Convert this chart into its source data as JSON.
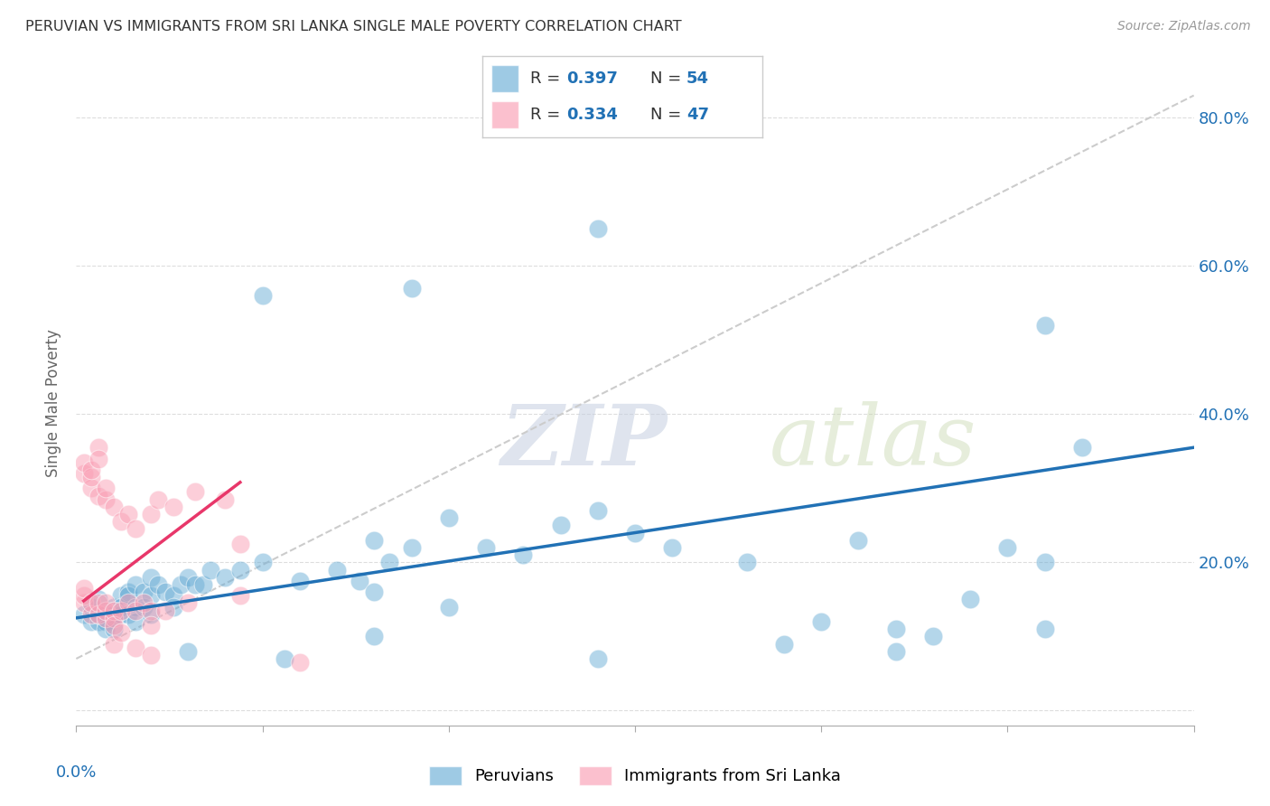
{
  "title": "PERUVIAN VS IMMIGRANTS FROM SRI LANKA SINGLE MALE POVERTY CORRELATION CHART",
  "source": "Source: ZipAtlas.com",
  "ylabel": "Single Male Poverty",
  "xlim": [
    0.0,
    0.15
  ],
  "ylim": [
    -0.02,
    0.85
  ],
  "yticks": [
    0.0,
    0.2,
    0.4,
    0.6,
    0.8
  ],
  "ytick_labels": [
    "",
    "20.0%",
    "40.0%",
    "60.0%",
    "80.0%"
  ],
  "xticks": [
    0.0,
    0.025,
    0.05,
    0.075,
    0.1,
    0.125,
    0.15
  ],
  "background_color": "#ffffff",
  "grid_color": "#dddddd",
  "watermark_zip": "ZIP",
  "watermark_atlas": "atlas",
  "blue_color": "#6baed6",
  "pink_color": "#fa9fb5",
  "blue_line_color": "#2171b5",
  "pink_line_color": "#e8376a",
  "dashed_line_color": "#cccccc",
  "title_color": "#333333",
  "source_color": "#999999",
  "blue_scatter": [
    [
      0.001,
      0.13
    ],
    [
      0.002,
      0.14
    ],
    [
      0.002,
      0.12
    ],
    [
      0.003,
      0.15
    ],
    [
      0.003,
      0.13
    ],
    [
      0.003,
      0.12
    ],
    [
      0.004,
      0.13
    ],
    [
      0.004,
      0.12
    ],
    [
      0.004,
      0.11
    ],
    [
      0.005,
      0.14
    ],
    [
      0.005,
      0.13
    ],
    [
      0.005,
      0.11
    ],
    [
      0.006,
      0.155
    ],
    [
      0.006,
      0.13
    ],
    [
      0.006,
      0.14
    ],
    [
      0.007,
      0.16
    ],
    [
      0.007,
      0.155
    ],
    [
      0.007,
      0.13
    ],
    [
      0.008,
      0.17
    ],
    [
      0.008,
      0.14
    ],
    [
      0.008,
      0.12
    ],
    [
      0.009,
      0.16
    ],
    [
      0.009,
      0.14
    ],
    [
      0.01,
      0.18
    ],
    [
      0.01,
      0.155
    ],
    [
      0.01,
      0.13
    ],
    [
      0.011,
      0.17
    ],
    [
      0.012,
      0.16
    ],
    [
      0.013,
      0.155
    ],
    [
      0.013,
      0.14
    ],
    [
      0.014,
      0.17
    ],
    [
      0.015,
      0.18
    ],
    [
      0.016,
      0.17
    ],
    [
      0.017,
      0.17
    ],
    [
      0.018,
      0.19
    ],
    [
      0.02,
      0.18
    ],
    [
      0.022,
      0.19
    ],
    [
      0.025,
      0.2
    ],
    [
      0.03,
      0.175
    ],
    [
      0.035,
      0.19
    ],
    [
      0.038,
      0.175
    ],
    [
      0.04,
      0.16
    ],
    [
      0.04,
      0.23
    ],
    [
      0.042,
      0.2
    ],
    [
      0.045,
      0.22
    ],
    [
      0.05,
      0.26
    ],
    [
      0.055,
      0.22
    ],
    [
      0.06,
      0.21
    ],
    [
      0.065,
      0.25
    ],
    [
      0.07,
      0.27
    ],
    [
      0.075,
      0.24
    ],
    [
      0.08,
      0.22
    ],
    [
      0.09,
      0.2
    ],
    [
      0.1,
      0.12
    ],
    [
      0.105,
      0.23
    ],
    [
      0.11,
      0.11
    ],
    [
      0.115,
      0.1
    ],
    [
      0.12,
      0.15
    ],
    [
      0.13,
      0.11
    ],
    [
      0.025,
      0.56
    ],
    [
      0.045,
      0.57
    ],
    [
      0.07,
      0.65
    ],
    [
      0.13,
      0.52
    ],
    [
      0.04,
      0.1
    ],
    [
      0.05,
      0.14
    ],
    [
      0.015,
      0.08
    ],
    [
      0.028,
      0.07
    ],
    [
      0.07,
      0.07
    ],
    [
      0.095,
      0.09
    ],
    [
      0.11,
      0.08
    ],
    [
      0.125,
      0.22
    ],
    [
      0.13,
      0.2
    ],
    [
      0.135,
      0.355
    ]
  ],
  "pink_scatter": [
    [
      0.001,
      0.145
    ],
    [
      0.001,
      0.155
    ],
    [
      0.001,
      0.165
    ],
    [
      0.001,
      0.32
    ],
    [
      0.001,
      0.335
    ],
    [
      0.002,
      0.13
    ],
    [
      0.002,
      0.145
    ],
    [
      0.002,
      0.3
    ],
    [
      0.002,
      0.315
    ],
    [
      0.002,
      0.325
    ],
    [
      0.003,
      0.13
    ],
    [
      0.003,
      0.145
    ],
    [
      0.003,
      0.29
    ],
    [
      0.003,
      0.355
    ],
    [
      0.003,
      0.34
    ],
    [
      0.004,
      0.125
    ],
    [
      0.004,
      0.135
    ],
    [
      0.004,
      0.145
    ],
    [
      0.004,
      0.285
    ],
    [
      0.004,
      0.3
    ],
    [
      0.005,
      0.125
    ],
    [
      0.005,
      0.135
    ],
    [
      0.005,
      0.275
    ],
    [
      0.005,
      0.115
    ],
    [
      0.005,
      0.09
    ],
    [
      0.006,
      0.255
    ],
    [
      0.006,
      0.135
    ],
    [
      0.006,
      0.105
    ],
    [
      0.007,
      0.265
    ],
    [
      0.007,
      0.145
    ],
    [
      0.008,
      0.245
    ],
    [
      0.008,
      0.135
    ],
    [
      0.008,
      0.085
    ],
    [
      0.009,
      0.145
    ],
    [
      0.01,
      0.265
    ],
    [
      0.01,
      0.135
    ],
    [
      0.01,
      0.115
    ],
    [
      0.01,
      0.075
    ],
    [
      0.011,
      0.285
    ],
    [
      0.012,
      0.135
    ],
    [
      0.013,
      0.275
    ],
    [
      0.015,
      0.145
    ],
    [
      0.016,
      0.295
    ],
    [
      0.02,
      0.285
    ],
    [
      0.022,
      0.225
    ],
    [
      0.022,
      0.155
    ],
    [
      0.03,
      0.065
    ]
  ],
  "blue_line": [
    [
      0.0,
      0.125
    ],
    [
      0.15,
      0.355
    ]
  ],
  "pink_line": [
    [
      0.001,
      0.148
    ],
    [
      0.022,
      0.308
    ]
  ],
  "dashed_line": [
    [
      0.0,
      0.07
    ],
    [
      0.15,
      0.83
    ]
  ]
}
